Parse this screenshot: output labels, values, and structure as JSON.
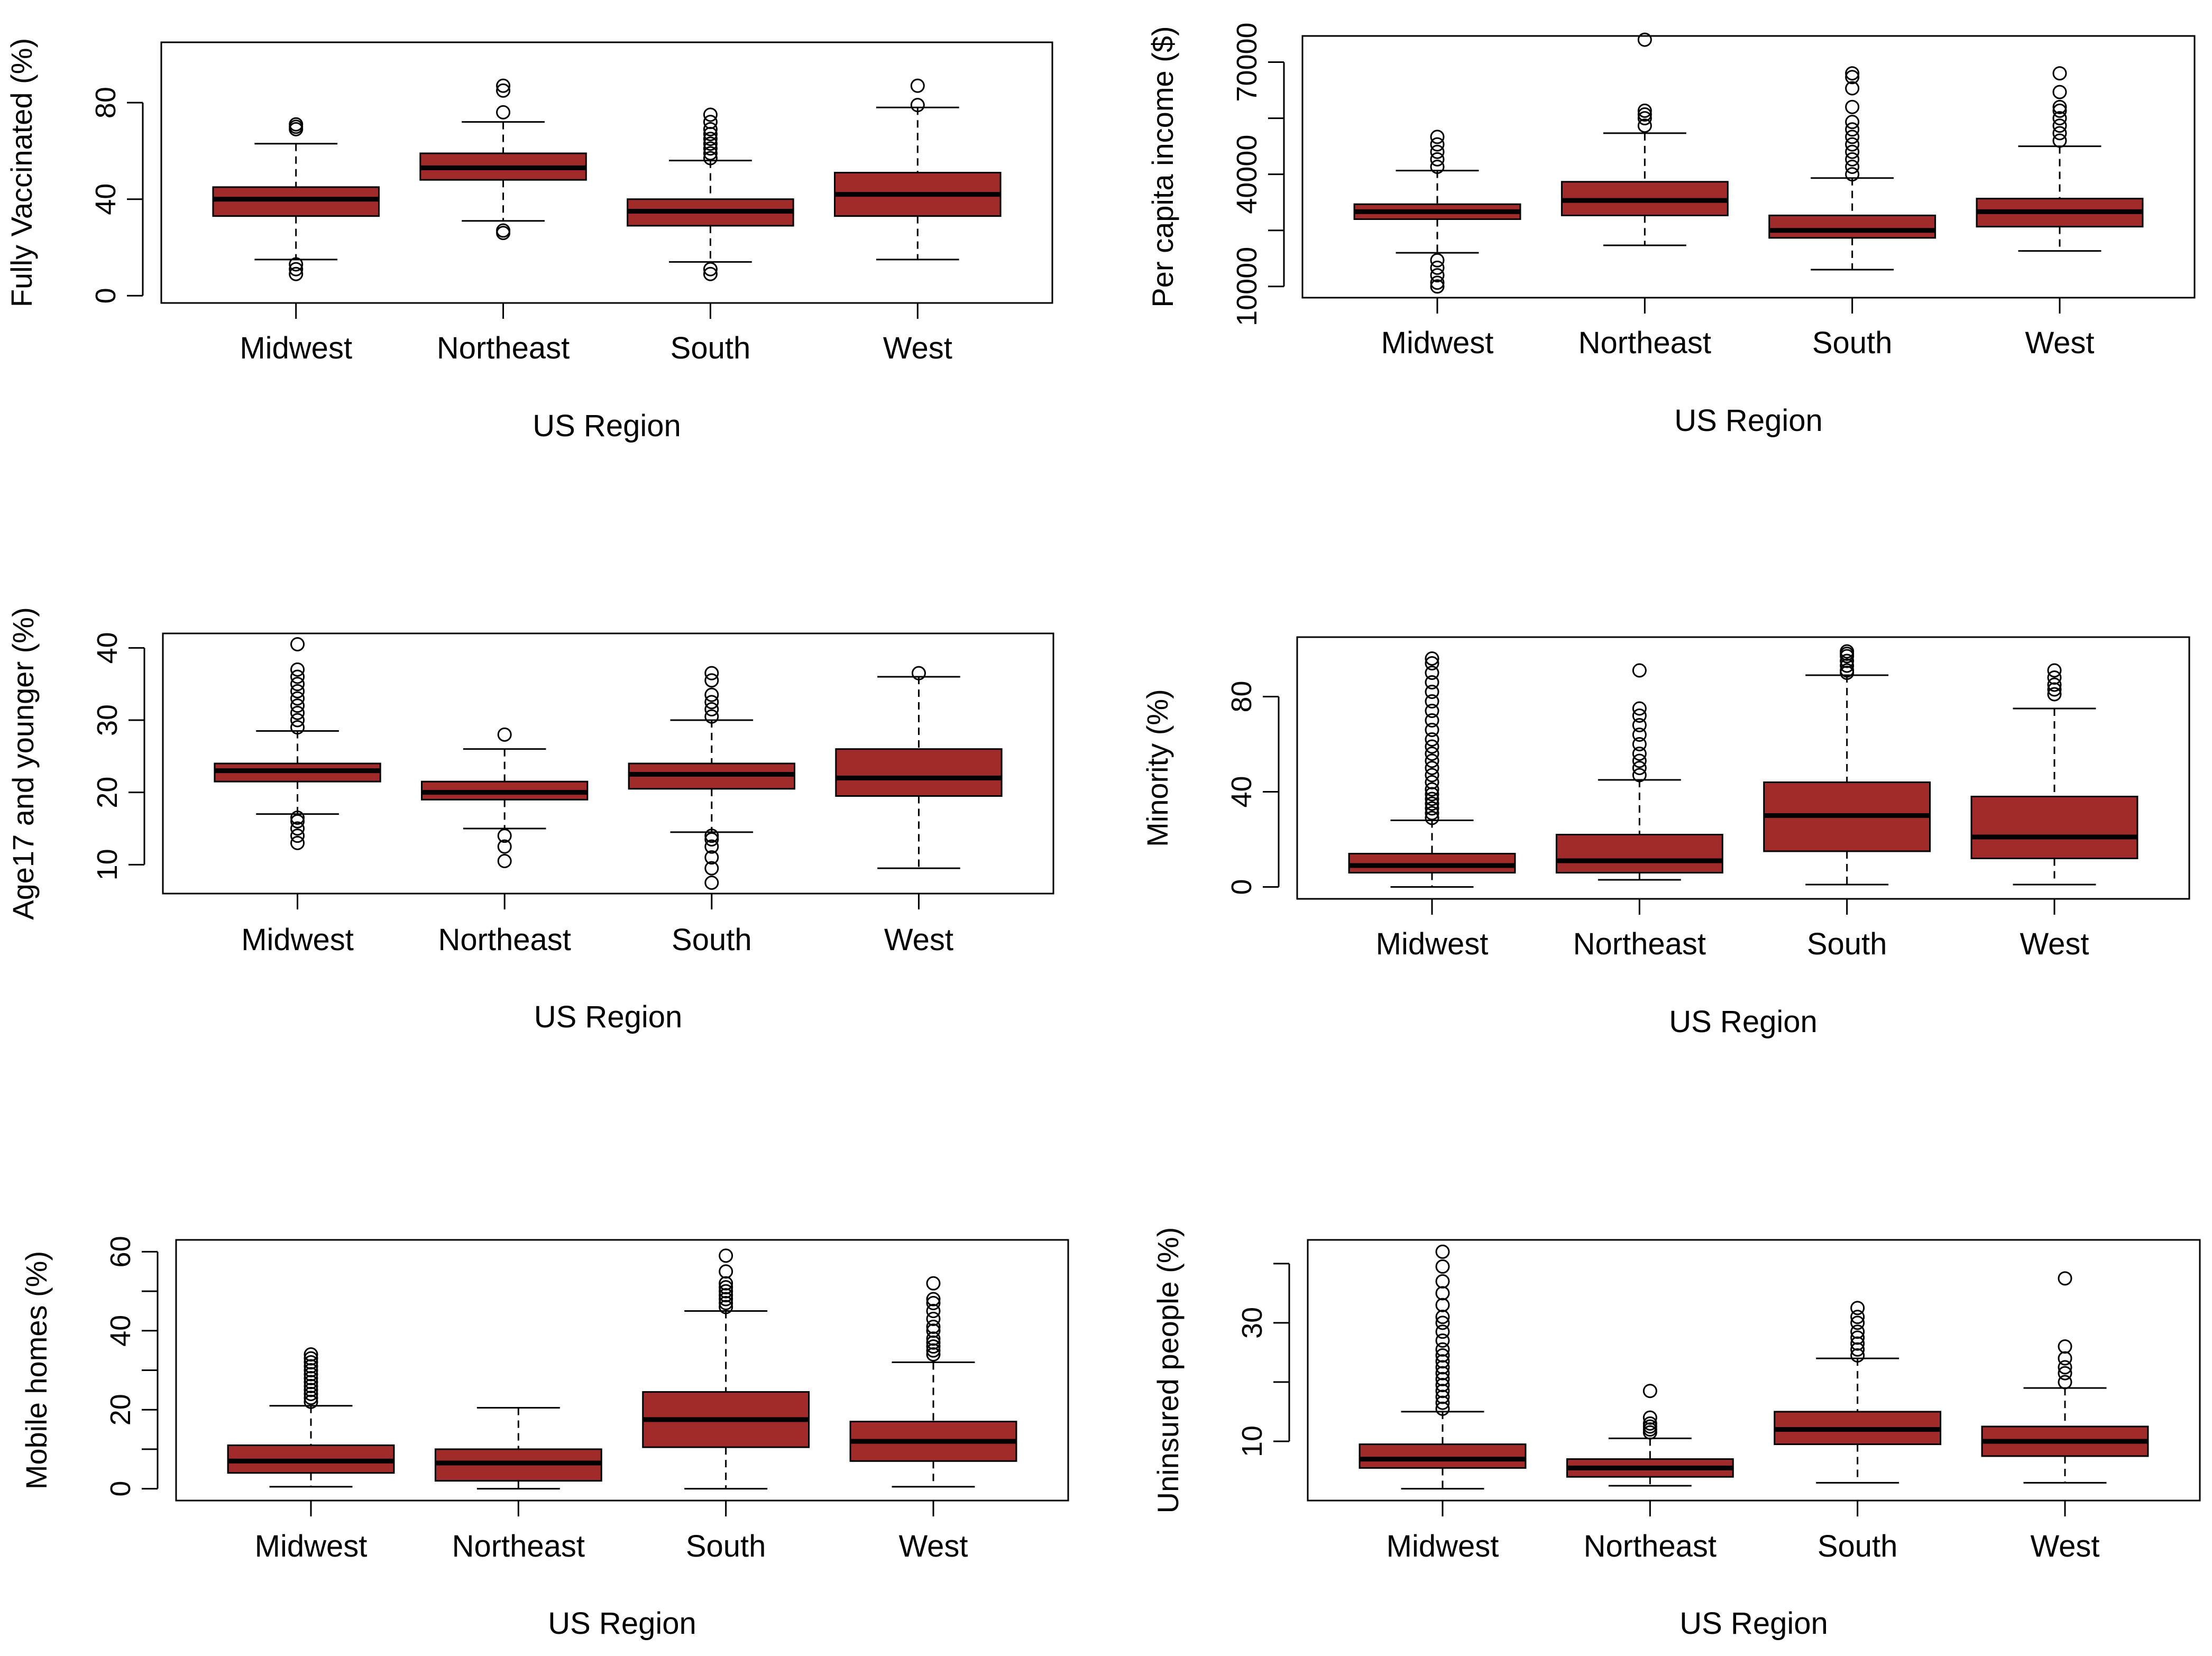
{
  "chart_data": [
    {
      "type": "boxplot",
      "ylabel": "Fully Vaccinated (%)",
      "xlabel": "US Region",
      "categories": [
        "Midwest",
        "Northeast",
        "South",
        "West"
      ],
      "ylim": [
        -3,
        105
      ],
      "yticks": [
        0,
        40,
        80
      ],
      "ytick_labels": [
        "0",
        "40",
        "80"
      ],
      "boxes": [
        {
          "whisker_low": 15,
          "q1": 33,
          "median": 40,
          "q3": 45,
          "whisker_high": 63,
          "outliers": [
            9,
            11,
            13,
            69,
            70,
            71
          ]
        },
        {
          "whisker_low": 31,
          "q1": 48,
          "median": 53,
          "q3": 59,
          "whisker_high": 72,
          "outliers": [
            26,
            27,
            76,
            85,
            87
          ]
        },
        {
          "whisker_low": 14,
          "q1": 29,
          "median": 35,
          "q3": 40,
          "whisker_high": 56,
          "outliers": [
            9,
            11,
            57,
            59,
            61,
            63,
            65,
            67,
            69,
            72,
            75
          ]
        },
        {
          "whisker_low": 15,
          "q1": 33,
          "median": 42,
          "q3": 51,
          "whisker_high": 78,
          "outliers": [
            79,
            87
          ]
        }
      ]
    },
    {
      "type": "boxplot",
      "ylabel": "Per capita income ($)",
      "xlabel": "US Region",
      "categories": [
        "Midwest",
        "Northeast",
        "South",
        "West"
      ],
      "ylim": [
        7000,
        77000
      ],
      "yticks": [
        10000,
        40000,
        70000
      ],
      "ytick_labels": [
        "10000",
        "40000",
        "70000"
      ],
      "minor_yticks": [
        25000,
        55000
      ],
      "boxes": [
        {
          "whisker_low": 19000,
          "q1": 28000,
          "median": 30000,
          "q3": 32000,
          "whisker_high": 41000,
          "outliers": [
            10000,
            11000,
            13000,
            15000,
            17000,
            42000,
            44000,
            46000,
            48000,
            50000
          ]
        },
        {
          "whisker_low": 21000,
          "q1": 29000,
          "median": 33000,
          "q3": 38000,
          "whisker_high": 51000,
          "outliers": [
            53000,
            55000,
            56000,
            57000,
            76000
          ]
        },
        {
          "whisker_low": 14500,
          "q1": 23000,
          "median": 25000,
          "q3": 29000,
          "whisker_high": 39000,
          "outliers": [
            40000,
            42000,
            44000,
            46000,
            48000,
            50000,
            52000,
            54000,
            58000,
            63000,
            66000,
            67000
          ]
        },
        {
          "whisker_low": 19500,
          "q1": 26000,
          "median": 30000,
          "q3": 33500,
          "whisker_high": 47500,
          "outliers": [
            49000,
            51000,
            53000,
            55000,
            57000,
            58000,
            62000,
            67000
          ]
        }
      ]
    },
    {
      "type": "boxplot",
      "ylabel": "Age17 and younger (%)",
      "xlabel": "US Region",
      "categories": [
        "Midwest",
        "Northeast",
        "South",
        "West"
      ],
      "ylim": [
        6,
        42
      ],
      "yticks": [
        10,
        20,
        30,
        40
      ],
      "ytick_labels": [
        "10",
        "20",
        "30",
        "40"
      ],
      "boxes": [
        {
          "whisker_low": 17,
          "q1": 21.5,
          "median": 23,
          "q3": 24,
          "whisker_high": 28.5,
          "outliers": [
            13,
            14,
            15,
            16,
            16.5,
            29,
            30,
            31,
            32,
            33,
            34,
            35,
            36,
            37,
            40.5
          ]
        },
        {
          "whisker_low": 15,
          "q1": 19,
          "median": 20,
          "q3": 21.5,
          "whisker_high": 26,
          "outliers": [
            10.5,
            12.5,
            14,
            28
          ]
        },
        {
          "whisker_low": 14.5,
          "q1": 20.5,
          "median": 22.5,
          "q3": 24,
          "whisker_high": 30,
          "outliers": [
            7.5,
            9.5,
            11,
            12.5,
            13.5,
            14,
            30.5,
            31.5,
            32.5,
            33.5,
            35.5,
            36.5
          ]
        },
        {
          "whisker_low": 9.5,
          "q1": 19.5,
          "median": 22,
          "q3": 26,
          "whisker_high": 36,
          "outliers": [
            36.5
          ]
        }
      ]
    },
    {
      "type": "boxplot",
      "ylabel": "Minority (%)",
      "xlabel": "US Region",
      "categories": [
        "Midwest",
        "Northeast",
        "South",
        "West"
      ],
      "ylim": [
        -5,
        105
      ],
      "yticks": [
        0,
        40,
        80
      ],
      "ytick_labels": [
        "0",
        "40",
        "80"
      ],
      "boxes": [
        {
          "whisker_low": 0,
          "q1": 6,
          "median": 9,
          "q3": 14,
          "whisker_high": 28,
          "outliers": [
            29,
            31,
            33,
            35,
            37,
            39,
            41,
            44,
            47,
            50,
            53,
            56,
            59,
            62,
            66,
            70,
            74,
            78,
            82,
            86,
            90,
            94,
            96
          ]
        },
        {
          "whisker_low": 3,
          "q1": 6,
          "median": 11,
          "q3": 22,
          "whisker_high": 45,
          "outliers": [
            47,
            50,
            53,
            56,
            60,
            64,
            68,
            72,
            75,
            91
          ]
        },
        {
          "whisker_low": 1,
          "q1": 15,
          "median": 30,
          "q3": 44,
          "whisker_high": 89,
          "outliers": [
            90,
            91,
            93,
            95,
            97,
            98,
            99
          ]
        },
        {
          "whisker_low": 1,
          "q1": 12,
          "median": 21,
          "q3": 38,
          "whisker_high": 75,
          "outliers": [
            81,
            83,
            85,
            88,
            91
          ]
        }
      ]
    },
    {
      "type": "boxplot",
      "ylabel": "Mobile homes (%)",
      "xlabel": "US Region",
      "categories": [
        "Midwest",
        "Northeast",
        "South",
        "West"
      ],
      "ylim": [
        -3,
        63
      ],
      "yticks": [
        0,
        20,
        40,
        60
      ],
      "ytick_labels": [
        "0",
        "20",
        "40",
        "60"
      ],
      "minor_yticks": [
        10,
        30,
        50
      ],
      "boxes": [
        {
          "whisker_low": 0.5,
          "q1": 4,
          "median": 7,
          "q3": 11,
          "whisker_high": 21,
          "outliers": [
            22,
            23,
            24,
            25,
            26,
            27,
            28,
            29,
            30,
            31,
            32,
            33,
            34
          ]
        },
        {
          "whisker_low": 0,
          "q1": 2,
          "median": 6.5,
          "q3": 10,
          "whisker_high": 20.5,
          "outliers": []
        },
        {
          "whisker_low": 0,
          "q1": 10.5,
          "median": 17.5,
          "q3": 24.5,
          "whisker_high": 45,
          "outliers": [
            46,
            47,
            48,
            49,
            50,
            51,
            52,
            55,
            59
          ]
        },
        {
          "whisker_low": 0.5,
          "q1": 7,
          "median": 12,
          "q3": 17,
          "whisker_high": 32,
          "outliers": [
            34,
            35,
            36,
            37,
            38,
            40,
            41,
            43,
            45,
            47,
            48,
            52
          ]
        }
      ]
    },
    {
      "type": "boxplot",
      "ylabel": "Uninsured people (%)",
      "xlabel": "US Region",
      "categories": [
        "Midwest",
        "Northeast",
        "South",
        "West"
      ],
      "ylim": [
        0,
        44
      ],
      "yticks": [
        10,
        30
      ],
      "ytick_labels": [
        "10",
        "30"
      ],
      "minor_yticks": [
        20,
        40
      ],
      "boxes": [
        {
          "whisker_low": 2,
          "q1": 5.5,
          "median": 7,
          "q3": 9.5,
          "whisker_high": 15,
          "outliers": [
            15.5,
            16.5,
            17.5,
            18.5,
            19.5,
            20.5,
            21.5,
            22.5,
            23.5,
            24.5,
            25.5,
            27,
            28.5,
            30,
            31,
            33,
            35,
            37,
            39.5,
            42
          ]
        },
        {
          "whisker_low": 2.5,
          "q1": 4,
          "median": 5.5,
          "q3": 7,
          "whisker_high": 10.5,
          "outliers": [
            11.5,
            12,
            12.5,
            13,
            14,
            18.5
          ]
        },
        {
          "whisker_low": 3,
          "q1": 9.5,
          "median": 12,
          "q3": 15,
          "whisker_high": 24,
          "outliers": [
            24.5,
            25.5,
            26.5,
            27.5,
            28.5,
            30,
            31,
            32.5
          ]
        },
        {
          "whisker_low": 3,
          "q1": 7.5,
          "median": 10,
          "q3": 12.5,
          "whisker_high": 19,
          "outliers": [
            20,
            21.5,
            22.5,
            24,
            26,
            37.5
          ]
        }
      ]
    }
  ],
  "colors": {
    "box_fill": "#A12A2A",
    "line": "#000000",
    "background": "#ffffff"
  }
}
